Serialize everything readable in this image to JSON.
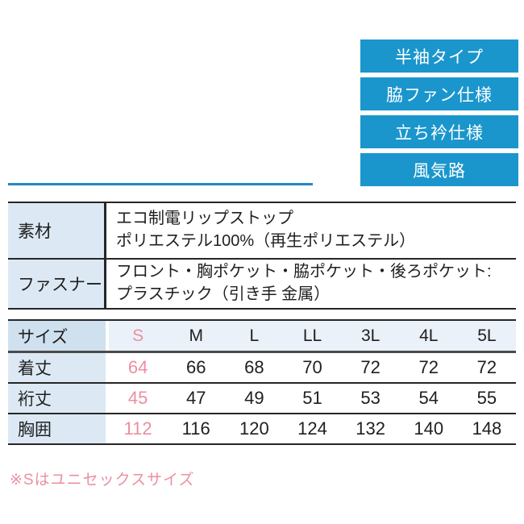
{
  "features": {
    "items": [
      "半袖タイプ",
      "脇ファン仕様",
      "立ち衿仕様",
      "風気路"
    ]
  },
  "spec_table": {
    "rows": [
      {
        "label": "素材",
        "line1": "エコ制電リップストップ",
        "line2": "ポリエステル100%（再生ポリエステル）"
      },
      {
        "label": "ファスナー",
        "line1": "フロント・胸ポケット・脇ポケット・後ろポケット:",
        "line2": "プラスチック（引き手 金属）"
      }
    ]
  },
  "size_table": {
    "header_label": "サイズ",
    "sizes": [
      "S",
      "M",
      "L",
      "LL",
      "3L",
      "4L",
      "5L"
    ],
    "rows": [
      {
        "label": "着丈",
        "values": [
          "64",
          "66",
          "68",
          "70",
          "72",
          "72",
          "72"
        ]
      },
      {
        "label": "裄丈",
        "values": [
          "45",
          "47",
          "49",
          "51",
          "53",
          "54",
          "55"
        ]
      },
      {
        "label": "胸囲",
        "values": [
          "112",
          "116",
          "120",
          "124",
          "132",
          "140",
          "148"
        ]
      }
    ],
    "highlighted_size": "S"
  },
  "note": "※Sはユニセックスサイズ",
  "colors": {
    "badge_blue": "#1a96cc",
    "divider_blue": "#2489c2",
    "pink": "#ec8fa0",
    "label_bg": "#dce9f4",
    "header_label_bg": "#cfe0ef",
    "header_data_bg": "#eaf1f8"
  }
}
